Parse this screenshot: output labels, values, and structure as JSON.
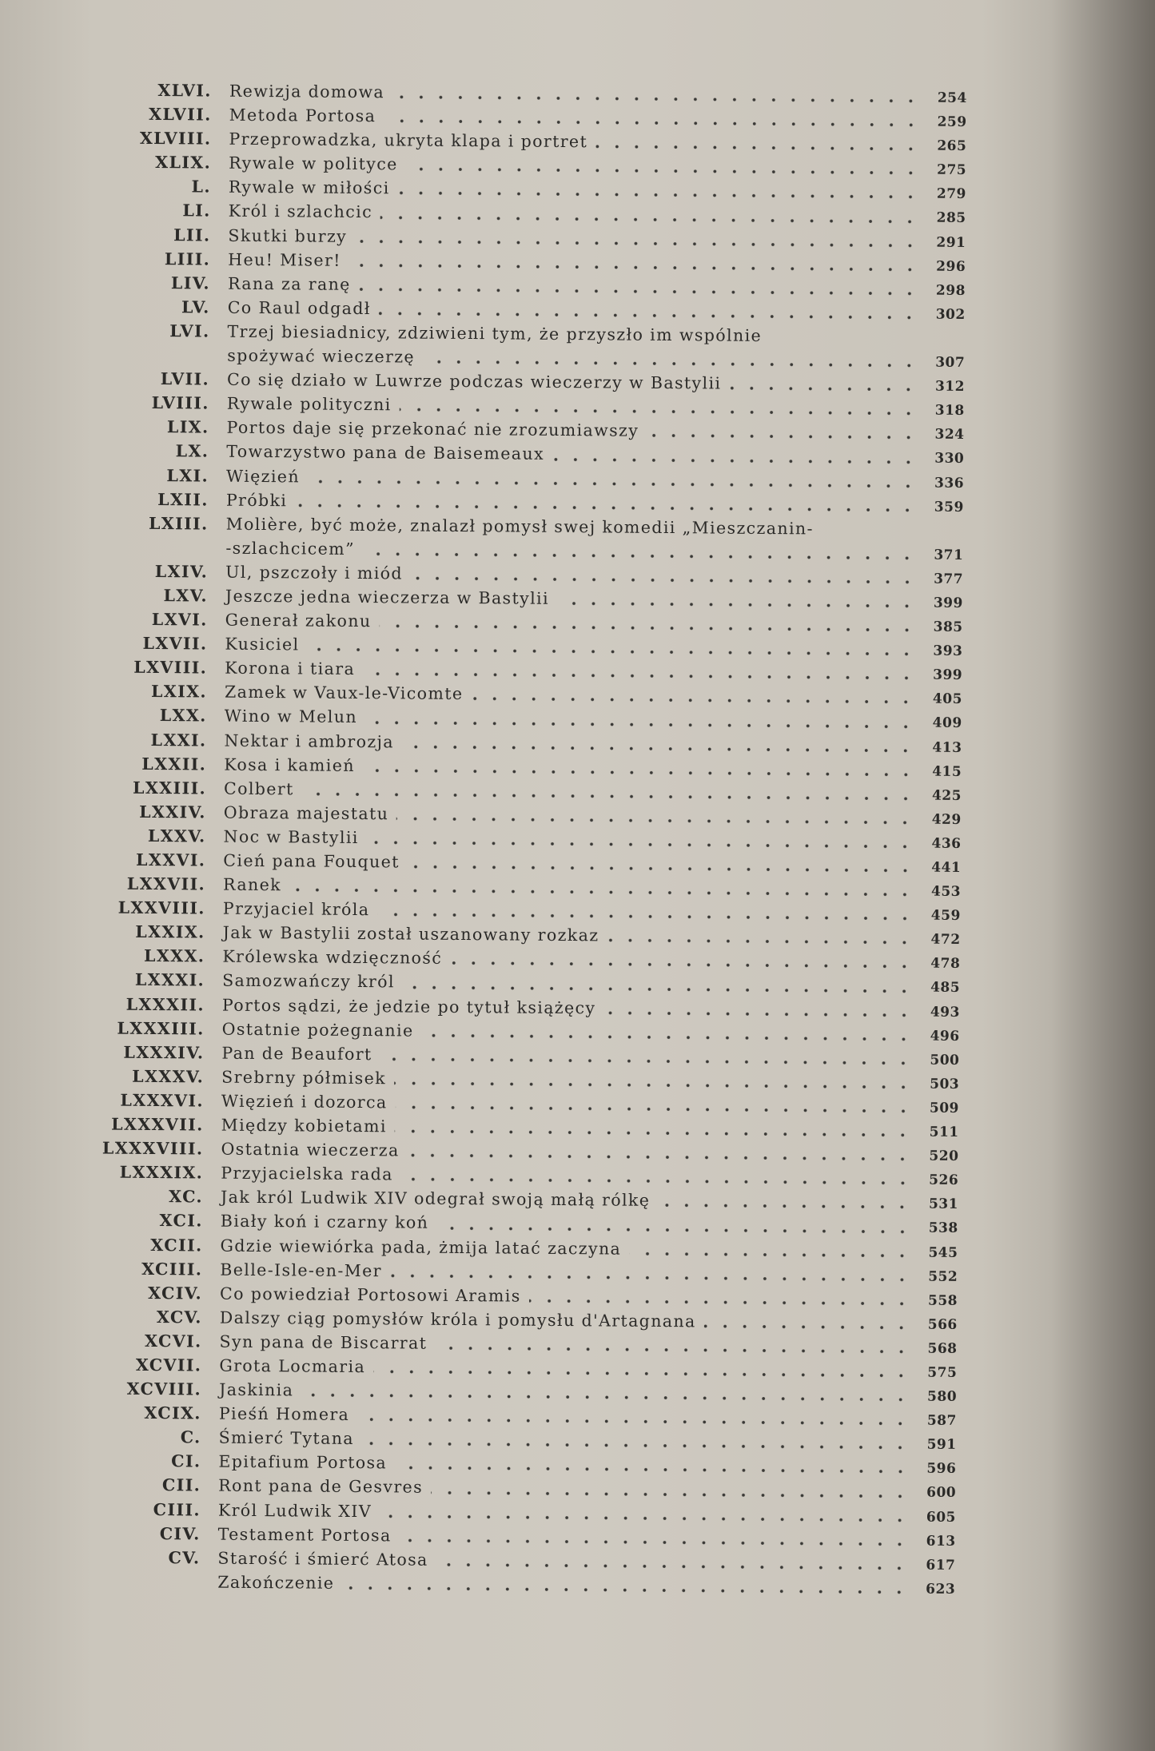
{
  "entries": [
    {
      "num": "XLVI.",
      "lines": [
        "Rewizja domowa"
      ],
      "page": "254"
    },
    {
      "num": "XLVII.",
      "lines": [
        "Metoda Portosa"
      ],
      "page": "259"
    },
    {
      "num": "XLVIII.",
      "lines": [
        "Przeprowadzka, ukryta klapa i portret"
      ],
      "page": "265"
    },
    {
      "num": "XLIX.",
      "lines": [
        "Rywale w polityce"
      ],
      "page": "275"
    },
    {
      "num": "L.",
      "lines": [
        "Rywale w miłości"
      ],
      "page": "279"
    },
    {
      "num": "LI.",
      "lines": [
        "Król i szlachcic"
      ],
      "page": "285"
    },
    {
      "num": "LII.",
      "lines": [
        "Skutki burzy"
      ],
      "page": "291"
    },
    {
      "num": "LIII.",
      "lines": [
        "Heu! Miser!"
      ],
      "page": "296"
    },
    {
      "num": "LIV.",
      "lines": [
        "Rana za ranę"
      ],
      "page": "298"
    },
    {
      "num": "LV.",
      "lines": [
        "Co Raul odgadł"
      ],
      "page": "302"
    },
    {
      "num": "LVI.",
      "lines": [
        "Trzej biesiadnicy, zdziwieni tym, że przyszło im wspólnie",
        "spożywać wieczerzę"
      ],
      "page": "307"
    },
    {
      "num": "LVII.",
      "lines": [
        "Co się działo w Luwrze podczas wieczerzy w Bastylii"
      ],
      "page": "312"
    },
    {
      "num": "LVIII.",
      "lines": [
        "Rywale polityczni"
      ],
      "page": "318"
    },
    {
      "num": "LIX.",
      "lines": [
        "Portos daje się przekonać nie zrozumiawszy"
      ],
      "page": "324"
    },
    {
      "num": "LX.",
      "lines": [
        "Towarzystwo pana de Baisemeaux"
      ],
      "page": "330"
    },
    {
      "num": "LXI.",
      "lines": [
        "Więzień"
      ],
      "page": "336"
    },
    {
      "num": "LXII.",
      "lines": [
        "Próbki"
      ],
      "page": "359"
    },
    {
      "num": "LXIII.",
      "lines": [
        "Molière, być może, znalazł pomysł swej komedii „Mieszczanin-",
        "-szlachcicem”"
      ],
      "page": "371"
    },
    {
      "num": "LXIV.",
      "lines": [
        "Ul, pszczoły i miód"
      ],
      "page": "377"
    },
    {
      "num": "LXV.",
      "lines": [
        "Jeszcze jedna wieczerza w Bastylii"
      ],
      "page": "399"
    },
    {
      "num": "LXVI.",
      "lines": [
        "Generał zakonu"
      ],
      "page": "385"
    },
    {
      "num": "LXVII.",
      "lines": [
        "Kusiciel"
      ],
      "page": "393"
    },
    {
      "num": "LXVIII.",
      "lines": [
        "Korona i tiara"
      ],
      "page": "399"
    },
    {
      "num": "LXIX.",
      "lines": [
        "Zamek w Vaux-le-Vicomte"
      ],
      "page": "405"
    },
    {
      "num": "LXX.",
      "lines": [
        "Wino w Melun"
      ],
      "page": "409"
    },
    {
      "num": "LXXI.",
      "lines": [
        "Nektar i ambrozja"
      ],
      "page": "413"
    },
    {
      "num": "LXXII.",
      "lines": [
        "Kosa i kamień"
      ],
      "page": "415"
    },
    {
      "num": "LXXIII.",
      "lines": [
        "Colbert"
      ],
      "page": "425"
    },
    {
      "num": "LXXIV.",
      "lines": [
        "Obraza majestatu"
      ],
      "page": "429"
    },
    {
      "num": "LXXV.",
      "lines": [
        "Noc w Bastylii"
      ],
      "page": "436"
    },
    {
      "num": "LXXVI.",
      "lines": [
        "Cień pana Fouquet"
      ],
      "page": "441"
    },
    {
      "num": "LXXVII.",
      "lines": [
        "Ranek"
      ],
      "page": "453"
    },
    {
      "num": "LXXVIII.",
      "lines": [
        "Przyjaciel króla"
      ],
      "page": "459"
    },
    {
      "num": "LXXIX.",
      "lines": [
        "Jak w Bastylii został uszanowany rozkaz"
      ],
      "page": "472"
    },
    {
      "num": "LXXX.",
      "lines": [
        "Królewska wdzięczność"
      ],
      "page": "478"
    },
    {
      "num": "LXXXI.",
      "lines": [
        "Samozwańczy król"
      ],
      "page": "485"
    },
    {
      "num": "LXXXII.",
      "lines": [
        "Portos sądzi, że jedzie po tytuł książęcy"
      ],
      "page": "493"
    },
    {
      "num": "LXXXIII.",
      "lines": [
        "Ostatnie pożegnanie"
      ],
      "page": "496"
    },
    {
      "num": "LXXXIV.",
      "lines": [
        "Pan de Beaufort"
      ],
      "page": "500"
    },
    {
      "num": "LXXXV.",
      "lines": [
        "Srebrny półmisek"
      ],
      "page": "503"
    },
    {
      "num": "LXXXVI.",
      "lines": [
        "Więzień i dozorca"
      ],
      "page": "509"
    },
    {
      "num": "LXXXVII.",
      "lines": [
        "Między kobietami"
      ],
      "page": "511"
    },
    {
      "num": "LXXXVIII.",
      "lines": [
        "Ostatnia wieczerza"
      ],
      "page": "520"
    },
    {
      "num": "LXXXIX.",
      "lines": [
        "Przyjacielska rada"
      ],
      "page": "526"
    },
    {
      "num": "XC.",
      "lines": [
        "Jak król Ludwik XIV odegrał swoją małą rólkę"
      ],
      "page": "531"
    },
    {
      "num": "XCI.",
      "lines": [
        "Biały koń i czarny koń"
      ],
      "page": "538"
    },
    {
      "num": "XCII.",
      "lines": [
        "Gdzie wiewiórka pada, żmija latać zaczyna"
      ],
      "page": "545"
    },
    {
      "num": "XCIII.",
      "lines": [
        "Belle-Isle-en-Mer"
      ],
      "page": "552"
    },
    {
      "num": "XCIV.",
      "lines": [
        "Co powiedział Portosowi Aramis"
      ],
      "page": "558"
    },
    {
      "num": "XCV.",
      "lines": [
        "Dalszy ciąg pomysłów króla i pomysłu d'Artagnana"
      ],
      "page": "566"
    },
    {
      "num": "XCVI.",
      "lines": [
        "Syn pana de Biscarrat"
      ],
      "page": "568"
    },
    {
      "num": "XCVII.",
      "lines": [
        "Grota Locmaria"
      ],
      "page": "575"
    },
    {
      "num": "XCVIII.",
      "lines": [
        "Jaskinia"
      ],
      "page": "580"
    },
    {
      "num": "XCIX.",
      "lines": [
        "Pieśń Homera"
      ],
      "page": "587"
    },
    {
      "num": "C.",
      "lines": [
        "Śmierć Tytana"
      ],
      "page": "591"
    },
    {
      "num": "CI.",
      "lines": [
        "Epitafium Portosa"
      ],
      "page": "596"
    },
    {
      "num": "CII.",
      "lines": [
        "Ront pana de Gesvres"
      ],
      "page": "600"
    },
    {
      "num": "CIII.",
      "lines": [
        "Król Ludwik XIV"
      ],
      "page": "605"
    },
    {
      "num": "CIV.",
      "lines": [
        "Testament Portosa"
      ],
      "page": "613"
    },
    {
      "num": "CV.",
      "lines": [
        "Starość i śmierć Atosa"
      ],
      "page": "617"
    },
    {
      "num": "",
      "lines": [
        "Zakończenie"
      ],
      "page": "623"
    }
  ]
}
